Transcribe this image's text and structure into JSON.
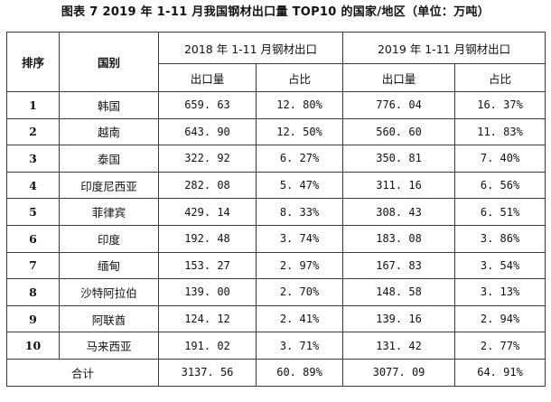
{
  "caption": "图表 7   2019 年 1-11 月我国钢材出口量 TOP10 的国家/地区（单位：万吨）",
  "headers": {
    "rank": "排序",
    "country": "国别",
    "group2018": "2018 年 1-11 月钢材出口",
    "group2019": "2019 年 1-11 月钢材出口",
    "volume2018": "出口量",
    "share2018": "占比",
    "volume2019": "出口量",
    "share2019": "占比"
  },
  "rows": [
    {
      "rank": "1",
      "country": "韩国",
      "v2018": "659. 63",
      "s2018": "12. 80%",
      "v2019": "776. 04",
      "s2019": "16. 37%"
    },
    {
      "rank": "2",
      "country": "越南",
      "v2018": "643. 90",
      "s2018": "12. 50%",
      "v2019": "560. 60",
      "s2019": "11. 83%"
    },
    {
      "rank": "3",
      "country": "泰国",
      "v2018": "322. 92",
      "s2018": "6. 27%",
      "v2019": "350. 81",
      "s2019": "7. 40%"
    },
    {
      "rank": "4",
      "country": "印度尼西亚",
      "v2018": "282. 08",
      "s2018": "5. 47%",
      "v2019": "311. 16",
      "s2019": "6. 56%"
    },
    {
      "rank": "5",
      "country": "菲律宾",
      "v2018": "429. 14",
      "s2018": "8. 33%",
      "v2019": "308. 43",
      "s2019": "6. 51%"
    },
    {
      "rank": "6",
      "country": "印度",
      "v2018": "192. 48",
      "s2018": "3. 74%",
      "v2019": "183. 08",
      "s2019": "3. 86%"
    },
    {
      "rank": "7",
      "country": "缅甸",
      "v2018": "153. 27",
      "s2018": "2. 97%",
      "v2019": "167. 83",
      "s2019": "3. 54%"
    },
    {
      "rank": "8",
      "country": "沙特阿拉伯",
      "v2018": "139. 00",
      "s2018": "2. 70%",
      "v2019": "148. 58",
      "s2019": "3. 13%"
    },
    {
      "rank": "9",
      "country": "阿联酋",
      "v2018": "124. 12",
      "s2018": "2. 41%",
      "v2019": "139. 16",
      "s2019": "2. 94%"
    },
    {
      "rank": "10",
      "country": "马来西亚",
      "v2018": "191. 02",
      "s2018": "3. 71%",
      "v2019": "131. 42",
      "s2019": "2. 77%"
    }
  ],
  "total": {
    "label": "合计",
    "v2018": "3137. 56",
    "s2018": "60. 89%",
    "v2019": "3077. 09",
    "s2019": "64. 91%"
  }
}
